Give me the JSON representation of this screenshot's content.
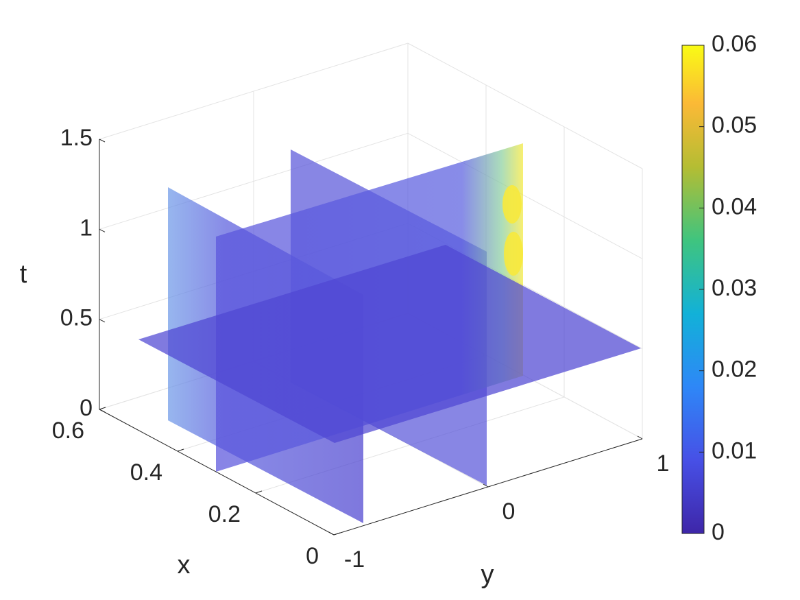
{
  "chart_data": {
    "type": "slice",
    "xlabel": "x",
    "ylabel": "y",
    "zlabel": "t",
    "xlim": [
      0,
      0.6
    ],
    "xticks": [
      0,
      0.2,
      0.4,
      0.6
    ],
    "ylim": [
      -1,
      1
    ],
    "yticks": [
      -1,
      0,
      1
    ],
    "zlim": [
      0,
      1.5
    ],
    "zticks": [
      0,
      0.5,
      1,
      1.5
    ],
    "grid": true,
    "colorbar": {
      "lim": [
        0,
        0.06
      ],
      "ticks": [
        0,
        0.01,
        0.02,
        0.03,
        0.04,
        0.05,
        0.06
      ]
    }
  }
}
